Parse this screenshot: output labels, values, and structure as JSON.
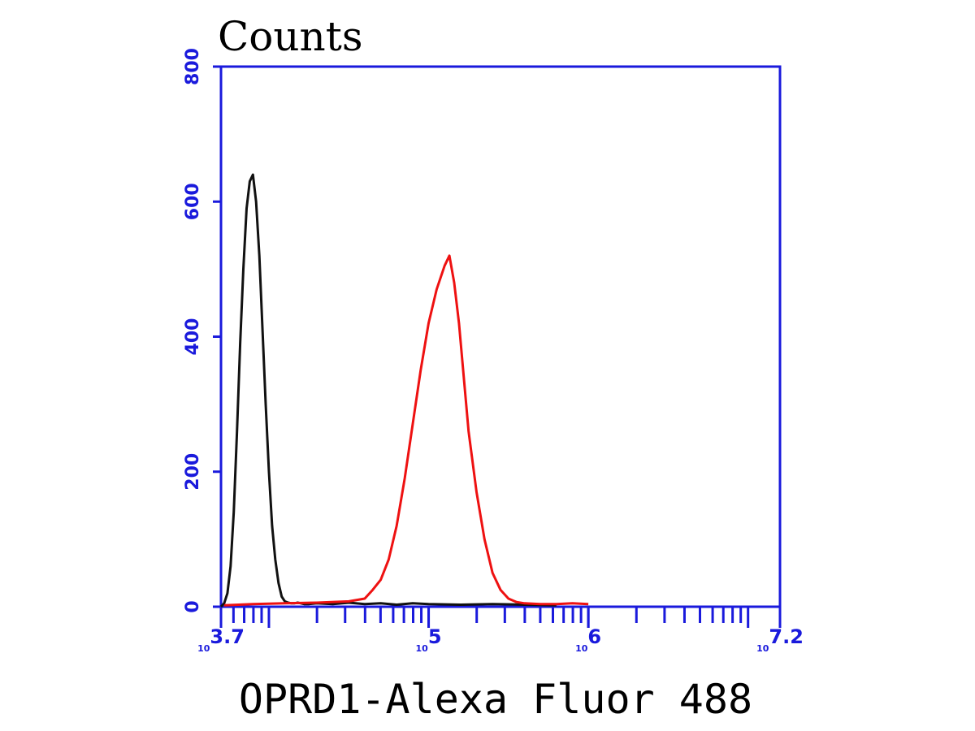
{
  "chart_data": {
    "type": "line",
    "ylabel": "Counts",
    "xlabel": "OPRD1-Alexa Fluor 488",
    "xscale": "log",
    "xlim_log10": [
      3.7,
      7.2
    ],
    "ylim": [
      0,
      800
    ],
    "yticks": [
      0,
      200,
      400,
      600,
      800
    ],
    "xticks": [
      {
        "base": "10",
        "exp": "3.7",
        "log10": 3.7
      },
      {
        "base": "10",
        "exp": "5",
        "log10": 5
      },
      {
        "base": "10",
        "exp": "6",
        "log10": 6
      },
      {
        "base": "10",
        "exp": "7.2",
        "log10": 7.2
      }
    ],
    "grid": false,
    "colors": {
      "axis": "#1a1adc",
      "series_black": "#111111",
      "series_red": "#ee1111"
    },
    "series": [
      {
        "color": "#111111",
        "x_log10": [
          3.7,
          3.72,
          3.74,
          3.76,
          3.78,
          3.8,
          3.82,
          3.84,
          3.86,
          3.88,
          3.9,
          3.92,
          3.94,
          3.96,
          3.98,
          4.0,
          4.02,
          4.04,
          4.06,
          4.08,
          4.1,
          4.12,
          4.14,
          4.16,
          4.18,
          4.2,
          4.22,
          4.25,
          4.3,
          4.4,
          4.5,
          4.6,
          4.7,
          4.8,
          4.9,
          5.0,
          5.2,
          5.4,
          5.6,
          5.8
        ],
        "y": [
          0,
          5,
          20,
          60,
          140,
          260,
          390,
          500,
          590,
          630,
          640,
          600,
          520,
          410,
          300,
          200,
          120,
          70,
          35,
          15,
          8,
          6,
          5,
          5,
          6,
          5,
          4,
          4,
          5,
          4,
          6,
          4,
          5,
          3,
          5,
          4,
          3,
          4,
          3,
          2
        ]
      },
      {
        "color": "#ee1111",
        "x_log10": [
          3.72,
          3.9,
          4.1,
          4.3,
          4.5,
          4.6,
          4.65,
          4.7,
          4.75,
          4.8,
          4.85,
          4.9,
          4.95,
          5.0,
          5.05,
          5.1,
          5.13,
          5.16,
          5.19,
          5.22,
          5.25,
          5.3,
          5.35,
          5.4,
          5.45,
          5.5,
          5.55,
          5.6,
          5.7,
          5.8,
          5.9,
          6.0
        ],
        "y": [
          2,
          4,
          5,
          6,
          8,
          12,
          25,
          40,
          70,
          120,
          190,
          270,
          350,
          420,
          470,
          505,
          520,
          480,
          420,
          340,
          260,
          170,
          100,
          50,
          25,
          12,
          7,
          5,
          4,
          4,
          5,
          4
        ]
      }
    ]
  }
}
